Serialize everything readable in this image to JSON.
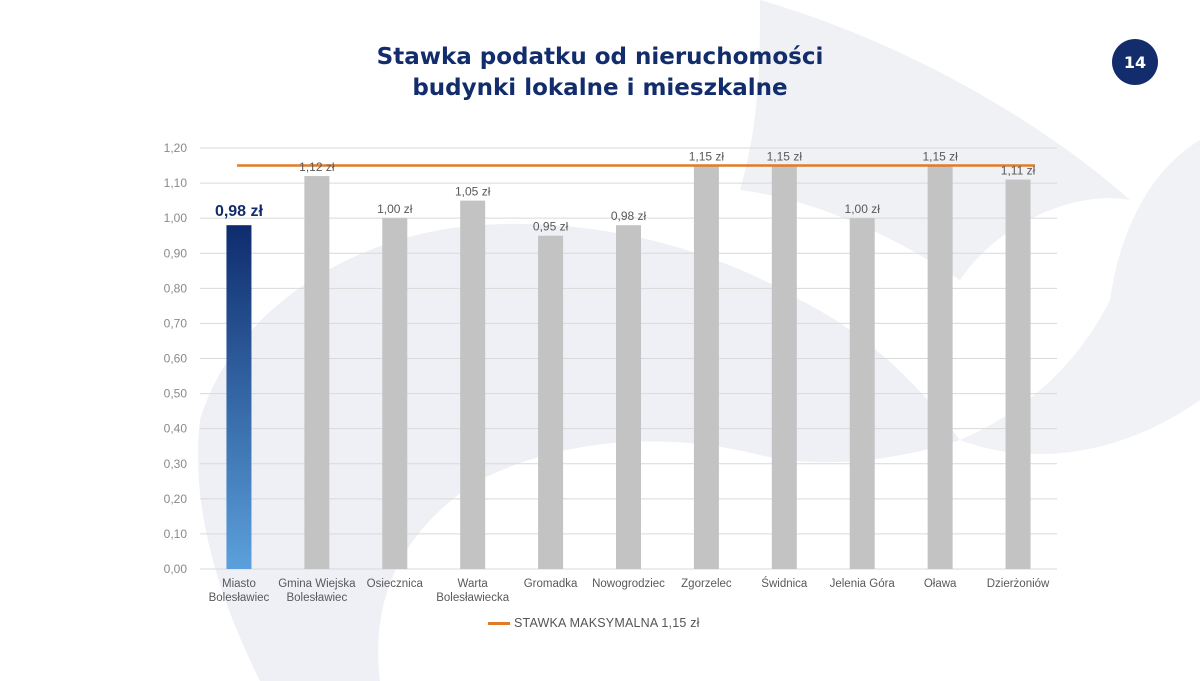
{
  "page": {
    "number": "14"
  },
  "title": {
    "line1": "Stawka podatku od nieruchomości",
    "line2": "budynki lokalne i mieszkalne"
  },
  "colors": {
    "title": "#132d6c",
    "highlight_top": "#0e2c6e",
    "highlight_bottom": "#5ba0dc",
    "bar": "#c3c3c3",
    "max_line": "#e07b28",
    "grid": "#d9d9d9",
    "axis_text": "#8a8a8a",
    "label_text": "#595959"
  },
  "legend": {
    "label": "STAWKA MAKSYMALNA 1,15 zł"
  },
  "chart_data": {
    "type": "bar",
    "categories": [
      [
        "Miasto",
        "Bolesławiec"
      ],
      [
        "Gmina Wiejska",
        "Bolesławiec"
      ],
      [
        "Osiecznica"
      ],
      [
        "Warta",
        "Bolesławiecka"
      ],
      [
        "Gromadka"
      ],
      [
        "Nowogrodziec"
      ],
      [
        "Zgorzelec"
      ],
      [
        "Świdnica"
      ],
      [
        "Jelenia Góra"
      ],
      [
        "Oława"
      ],
      [
        "Dzierżoniów"
      ]
    ],
    "values": [
      0.98,
      1.12,
      1.0,
      1.05,
      0.95,
      0.98,
      1.15,
      1.15,
      1.0,
      1.15,
      1.11
    ],
    "data_labels": [
      "0,98 zł",
      "1,12 zł",
      "1,00 zł",
      "1,05 zł",
      "0,95 zł",
      "0,98 zł",
      "1,15 zł",
      "1,15 zł",
      "1,00 zł",
      "1,15 zł",
      "1,11 zł"
    ],
    "highlight_index": 0,
    "y_ticks": [
      "0,00",
      "0,10",
      "0,20",
      "0,30",
      "0,40",
      "0,50",
      "0,60",
      "0,70",
      "0,80",
      "0,90",
      "1,00",
      "1,10",
      "1,20"
    ],
    "ylim": [
      0,
      1.2
    ],
    "reference_line": {
      "value": 1.15,
      "name": "STAWKA MAKSYMALNA 1,15 zł"
    },
    "grid": true,
    "legend_position": "bottom"
  }
}
